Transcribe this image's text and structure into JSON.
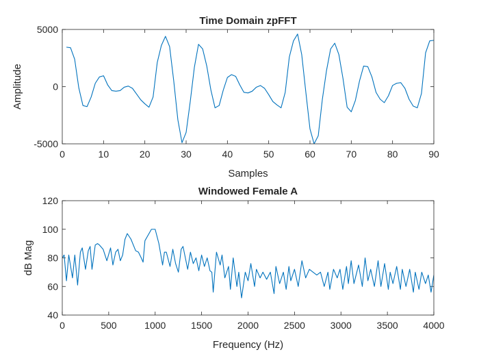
{
  "chart_data": [
    {
      "type": "line",
      "title": "Time Domain zpFFT",
      "xlabel": "Samples",
      "ylabel": "Amplitude",
      "xlim": [
        0,
        90
      ],
      "ylim": [
        -5000,
        5000
      ],
      "xticks": [
        0,
        10,
        20,
        30,
        40,
        50,
        60,
        70,
        80,
        90
      ],
      "yticks": [
        -5000,
        0,
        5000
      ],
      "xtick_labels": [
        "0",
        "10",
        "20",
        "30",
        "40",
        "50",
        "60",
        "70",
        "80",
        "90"
      ],
      "ytick_labels": [
        "-5000",
        "0",
        "5000"
      ],
      "grid": false,
      "line_color": "#0072BD",
      "series": [
        {
          "x": [
            1,
            2,
            3,
            4,
            5,
            6,
            7,
            8,
            9,
            10,
            11,
            12,
            13,
            14,
            15,
            16,
            17,
            18,
            19,
            20,
            21,
            22,
            23,
            24,
            25,
            26,
            27,
            28,
            29,
            30,
            31,
            32,
            33,
            34,
            35,
            36,
            37,
            38,
            39,
            40,
            41,
            42,
            43,
            44,
            45,
            46,
            47,
            48,
            49,
            50,
            51,
            52,
            53,
            54,
            55,
            56,
            57,
            58,
            59,
            60,
            61,
            62,
            63,
            64,
            65,
            66,
            67,
            68,
            69,
            70,
            71,
            72,
            73,
            74,
            75,
            76,
            77,
            78,
            79,
            80,
            81,
            82,
            83,
            84,
            85,
            86,
            87,
            88,
            89,
            90
          ],
          "y": [
            3450,
            3400,
            2400,
            -100,
            -1650,
            -1750,
            -900,
            300,
            850,
            950,
            150,
            -350,
            -400,
            -350,
            -50,
            50,
            -150,
            -650,
            -1150,
            -1500,
            -1800,
            -900,
            2100,
            3600,
            4400,
            3500,
            500,
            -2900,
            -4900,
            -4000,
            -1300,
            1700,
            3700,
            3300,
            1800,
            -300,
            -1850,
            -1650,
            -300,
            800,
            1050,
            900,
            150,
            -500,
            -550,
            -400,
            -50,
            100,
            -150,
            -700,
            -1300,
            -1600,
            -1850,
            -500,
            2600,
            4000,
            4600,
            2800,
            -500,
            -3700,
            -5000,
            -4300,
            -1100,
            1400,
            3300,
            3800,
            2800,
            700,
            -1800,
            -2200,
            -1200,
            500,
            1800,
            1750,
            850,
            -500,
            -1100,
            -1400,
            -800,
            100,
            300,
            350,
            -150,
            -1100,
            -1700,
            -1850,
            -600,
            2950,
            4000,
            4050
          ]
        }
      ]
    },
    {
      "type": "line",
      "title": "Windowed Female A",
      "xlabel": "Frequency (Hz)",
      "ylabel": "dB Mag",
      "xlim": [
        0,
        4000
      ],
      "ylim": [
        40,
        120
      ],
      "xticks": [
        0,
        500,
        1000,
        1500,
        2000,
        2500,
        3000,
        3500,
        4000
      ],
      "yticks": [
        40,
        60,
        80,
        100,
        120
      ],
      "xtick_labels": [
        "0",
        "500",
        "1000",
        "1500",
        "2000",
        "2500",
        "3000",
        "3500",
        "4000"
      ],
      "ytick_labels": [
        "40",
        "60",
        "80",
        "100",
        "120"
      ],
      "grid": false,
      "line_color": "#0072BD",
      "series": [
        {
          "x": [
            0,
            20,
            45,
            70,
            110,
            135,
            165,
            195,
            215,
            250,
            280,
            300,
            320,
            355,
            380,
            400,
            440,
            480,
            520,
            545,
            575,
            600,
            625,
            650,
            675,
            700,
            740,
            790,
            820,
            850,
            870,
            890,
            960,
            1000,
            1040,
            1080,
            1100,
            1120,
            1160,
            1190,
            1220,
            1250,
            1280,
            1300,
            1350,
            1380,
            1410,
            1440,
            1470,
            1500,
            1530,
            1560,
            1590,
            1610,
            1625,
            1660,
            1700,
            1720,
            1750,
            1790,
            1810,
            1840,
            1880,
            1900,
            1930,
            1970,
            2000,
            2030,
            2070,
            2090,
            2130,
            2160,
            2200,
            2240,
            2280,
            2300,
            2340,
            2380,
            2410,
            2440,
            2460,
            2500,
            2540,
            2580,
            2620,
            2660,
            2700,
            2740,
            2780,
            2820,
            2860,
            2880,
            2920,
            2960,
            2990,
            3020,
            3060,
            3080,
            3110,
            3140,
            3190,
            3230,
            3260,
            3290,
            3320,
            3360,
            3400,
            3430,
            3470,
            3510,
            3530,
            3560,
            3600,
            3640,
            3660,
            3700,
            3740,
            3780,
            3800,
            3840,
            3870,
            3910,
            3940,
            3970,
            4000
          ],
          "y": [
            80,
            82,
            64,
            82,
            66,
            82,
            61,
            84,
            87,
            72,
            85,
            88,
            72,
            89,
            90,
            89,
            86,
            78,
            87,
            75,
            84,
            86,
            78,
            82,
            93,
            97,
            93,
            85,
            84,
            80,
            77,
            92,
            100,
            100,
            90,
            75,
            84,
            84,
            74,
            86,
            76,
            70,
            86,
            88,
            72,
            84,
            76,
            80,
            71,
            82,
            74,
            80,
            71,
            70,
            56,
            84,
            75,
            82,
            66,
            74,
            58,
            80,
            60,
            70,
            52,
            70,
            64,
            76,
            60,
            72,
            66,
            70,
            65,
            70,
            55,
            74,
            62,
            70,
            58,
            74,
            64,
            72,
            60,
            78,
            66,
            72,
            70,
            68,
            70,
            60,
            70,
            58,
            72,
            66,
            72,
            58,
            74,
            62,
            78,
            62,
            75,
            60,
            80,
            64,
            72,
            60,
            78,
            60,
            76,
            58,
            70,
            62,
            74,
            58,
            72,
            60,
            72,
            56,
            70,
            58,
            70,
            62,
            68,
            56,
            68
          ]
        }
      ]
    }
  ]
}
